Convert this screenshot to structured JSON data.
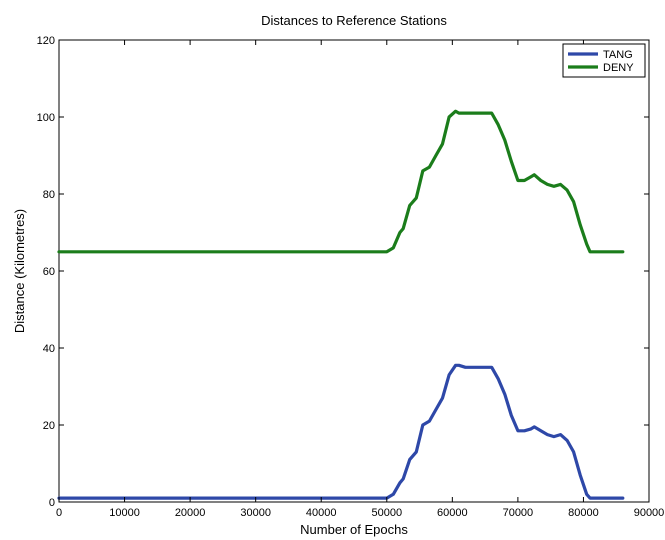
{
  "chart_data": {
    "type": "line",
    "title": "Distances to Reference Stations",
    "xlabel": "Number of Epochs",
    "ylabel": "Distance (Kilometres)",
    "xlim": [
      0,
      90000
    ],
    "ylim": [
      0,
      120
    ],
    "xticks": [
      "0",
      "10000",
      "20000",
      "30000",
      "40000",
      "50000",
      "60000",
      "70000",
      "80000",
      "90000"
    ],
    "yticks": [
      "0",
      "20",
      "40",
      "60",
      "80",
      "100",
      "120"
    ],
    "legend_position": "top-right",
    "grid": false,
    "series": [
      {
        "name": "TANG",
        "color": "#2e48a8",
        "x": [
          0,
          50000,
          51000,
          52000,
          52500,
          53500,
          54500,
          55500,
          56500,
          57500,
          58500,
          59500,
          60500,
          61000,
          62000,
          63000,
          64000,
          65000,
          66000,
          67000,
          68000,
          69000,
          70000,
          71000,
          72000,
          72500,
          73500,
          74500,
          75500,
          76500,
          77500,
          78500,
          79500,
          80500,
          81000,
          82000,
          86000
        ],
        "y": [
          1,
          1,
          2,
          5,
          6,
          11,
          13,
          20,
          21,
          24,
          27,
          33,
          35.5,
          35.5,
          35,
          35,
          35,
          35,
          35,
          32,
          28,
          22.5,
          18.5,
          18.5,
          19,
          19.5,
          18.5,
          17.5,
          17,
          17.5,
          16,
          13,
          7,
          2,
          1,
          1,
          1
        ]
      },
      {
        "name": "DENY",
        "color": "#1b7d1b",
        "x": [
          0,
          50000,
          51000,
          52000,
          52500,
          53500,
          54500,
          55500,
          56500,
          57500,
          58500,
          59500,
          60500,
          61000,
          62000,
          63000,
          64000,
          65000,
          66000,
          67000,
          68000,
          69000,
          70000,
          71000,
          72000,
          72500,
          73500,
          74500,
          75500,
          76500,
          77500,
          78500,
          79500,
          80500,
          81000,
          82000,
          86000
        ],
        "y": [
          65,
          65,
          66,
          70,
          71,
          77,
          79,
          86,
          87,
          90,
          93,
          100,
          101.5,
          101,
          101,
          101,
          101,
          101,
          101,
          98,
          94,
          88.5,
          83.5,
          83.5,
          84.5,
          85,
          83.5,
          82.5,
          82,
          82.5,
          81,
          78,
          72,
          67,
          65,
          65,
          65
        ]
      }
    ]
  }
}
